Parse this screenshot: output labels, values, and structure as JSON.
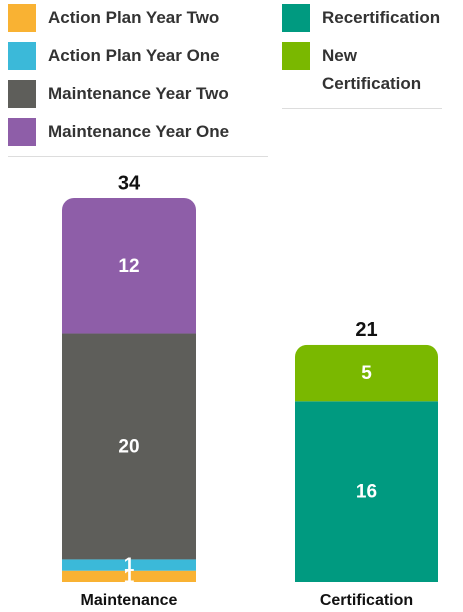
{
  "chart_data": {
    "type": "stacked_bar",
    "categories": [
      "Maintenance",
      "Certification"
    ],
    "totals": [
      34,
      21
    ],
    "series": [
      {
        "name": "Action Plan Year Two",
        "color": "#f9b233",
        "values": [
          1,
          null
        ]
      },
      {
        "name": "Action Plan Year One",
        "color": "#3bb9d9",
        "values": [
          1,
          null
        ]
      },
      {
        "name": "Maintenance Year Two",
        "color": "#5e5e5a",
        "values": [
          20,
          null
        ]
      },
      {
        "name": "Maintenance Year One",
        "color": "#8e5ea8",
        "values": [
          12,
          null
        ]
      },
      {
        "name": "Recertification",
        "color": "#009a80",
        "values": [
          null,
          16
        ]
      },
      {
        "name": "New Certification",
        "color": "#7ab800",
        "values": [
          null,
          5
        ]
      }
    ]
  }
}
